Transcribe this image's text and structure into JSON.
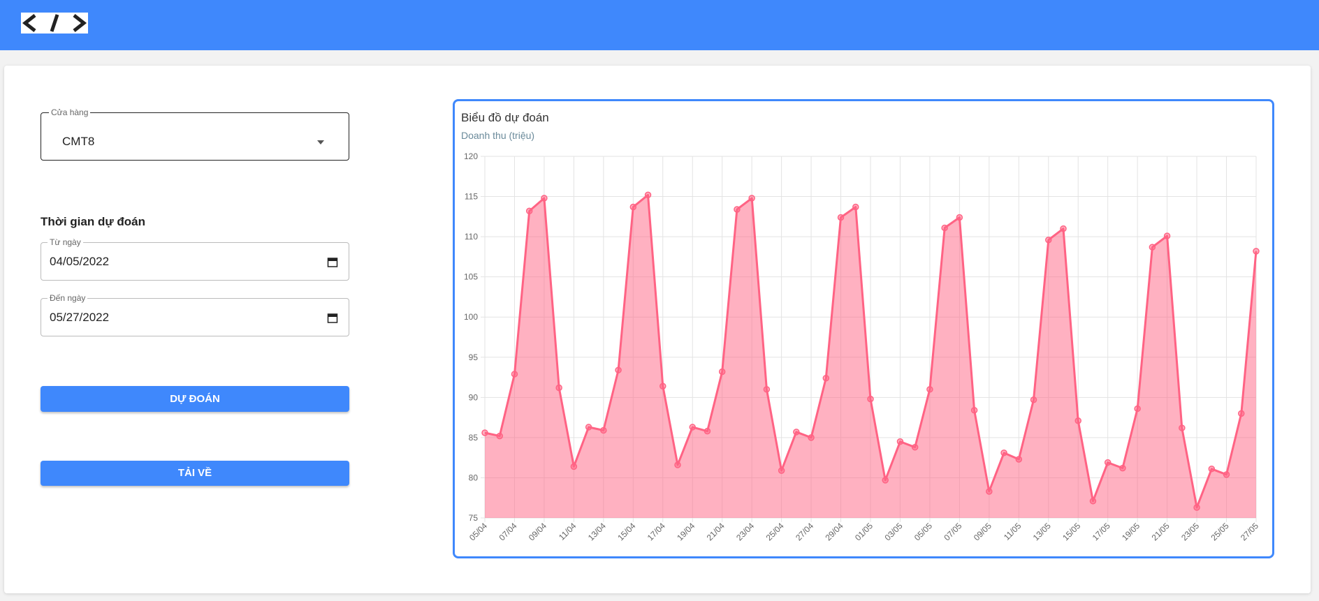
{
  "form": {
    "store_label": "Cửa hàng",
    "store_value": "CMT8",
    "section_title": "Thời gian dự đoán",
    "from_label": "Từ ngày",
    "from_value": "04/05/2022",
    "to_label": "Đến ngày",
    "to_value": "05/27/2022",
    "predict_button": "DỰ ĐOÁN",
    "download_button": "TẢI VỀ"
  },
  "chart_data": {
    "type": "line",
    "title": "Biểu đồ dự đoán",
    "y_label": "Doanh thu (triệu)",
    "categories": [
      "05/04",
      null,
      "07/04",
      null,
      "09/04",
      null,
      "11/04",
      null,
      "13/04",
      null,
      "15/04",
      null,
      "17/04",
      null,
      "19/04",
      null,
      "21/04",
      null,
      "23/04",
      null,
      "25/04",
      null,
      "27/04",
      null,
      "29/04",
      null,
      "01/05",
      null,
      "03/05",
      null,
      "05/05",
      null,
      "07/05",
      null,
      "09/05",
      null,
      "11/05",
      null,
      "13/05",
      null,
      "15/05",
      null,
      "17/05",
      null,
      "19/05",
      null,
      "21/05",
      null,
      "23/05",
      null,
      "25/05",
      null,
      "27/05"
    ],
    "values": [
      85.6,
      85.2,
      92.9,
      113.2,
      114.8,
      91.2,
      81.4,
      86.3,
      85.9,
      93.4,
      113.7,
      115.2,
      91.4,
      81.6,
      86.3,
      85.8,
      93.2,
      113.4,
      114.8,
      91.0,
      80.9,
      85.7,
      85.0,
      92.4,
      112.4,
      113.7,
      89.8,
      79.7,
      84.5,
      83.8,
      91.0,
      111.1,
      112.4,
      88.4,
      78.3,
      83.1,
      82.3,
      89.7,
      109.6,
      111.0,
      87.1,
      77.1,
      81.9,
      81.2,
      88.6,
      108.7,
      110.1,
      86.2,
      76.3,
      81.1,
      80.4,
      88.0,
      108.2
    ],
    "color": "#ff6384",
    "fill_color": "rgba(255,99,132,0.5)",
    "fill": true,
    "ylim": [
      75,
      120
    ],
    "yticks": [
      75,
      80,
      85,
      90,
      95,
      100,
      105,
      110,
      115,
      120
    ],
    "grid": true
  }
}
